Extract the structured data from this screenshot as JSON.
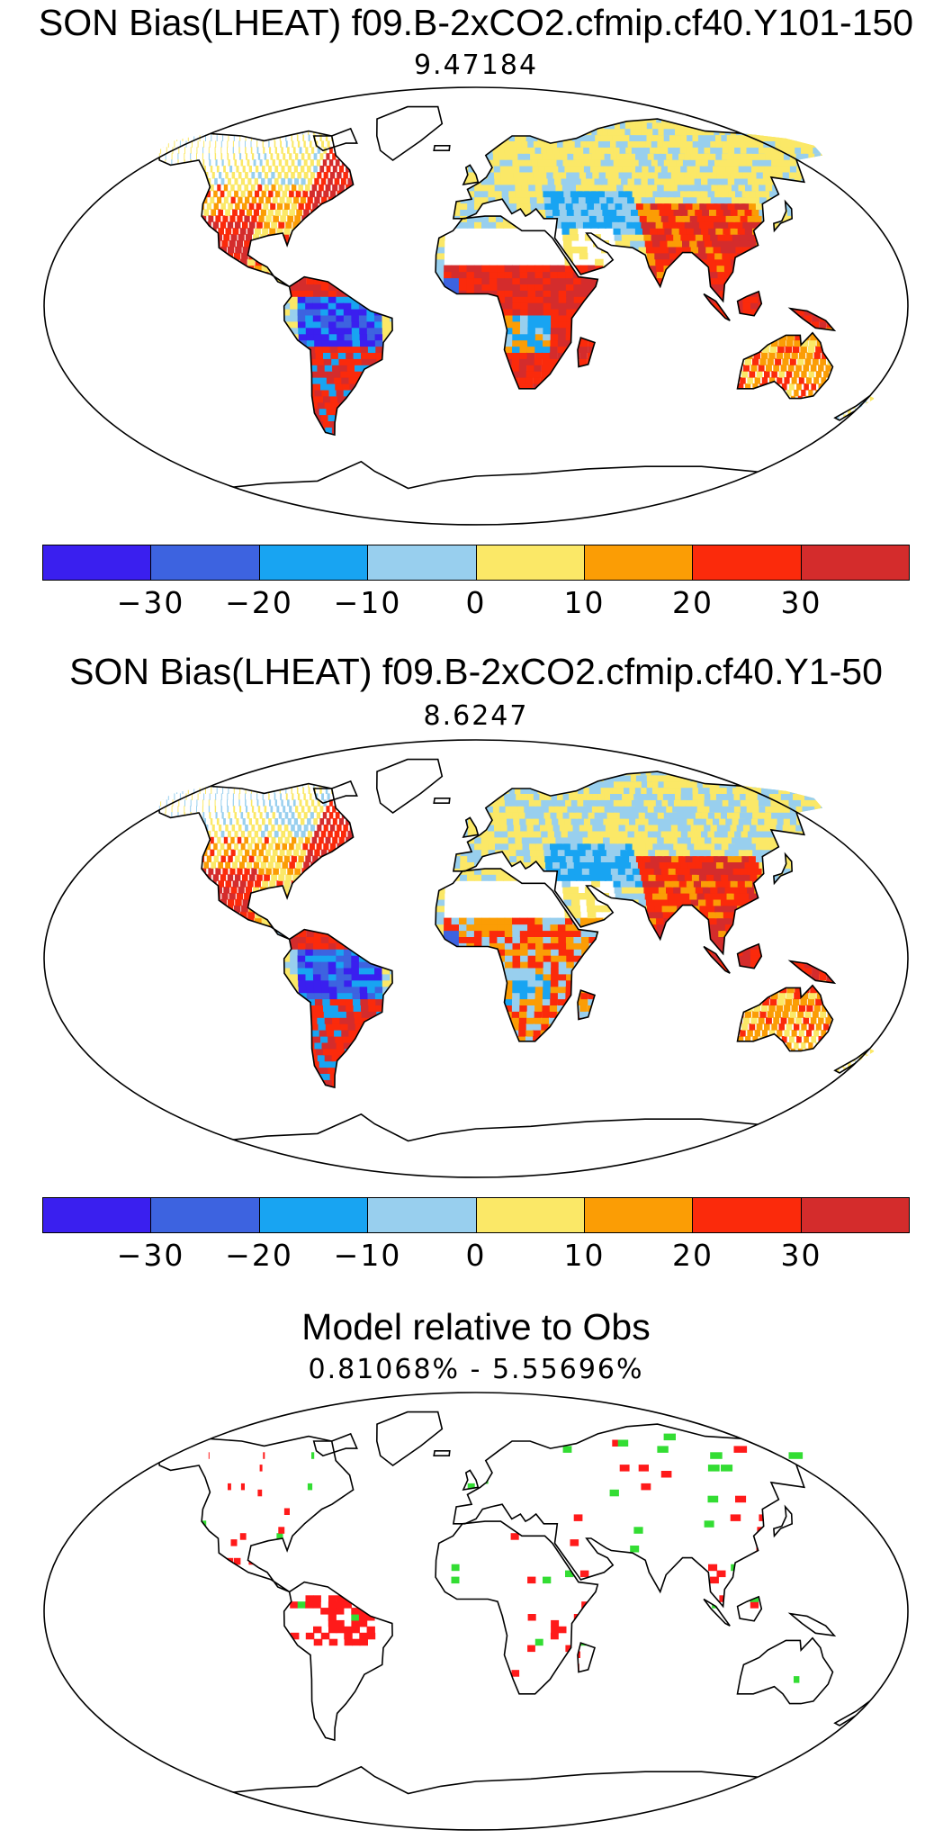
{
  "panels": [
    {
      "title": "SON Bias(LHEAT) f09.B-2xCO2.cfmip.cf40.Y101-150",
      "value": "9.47184"
    },
    {
      "title": "SON Bias(LHEAT) f09.B-2xCO2.cfmip.cf40.Y1-50",
      "value": "8.6247"
    },
    {
      "title": "Model relative to Obs",
      "value": "0.81068% - 5.55696%"
    }
  ],
  "colorbar": {
    "colors": [
      "#3a1fef",
      "#3d63e0",
      "#18a4f2",
      "#98cfee",
      "#fbe867",
      "#fb9d05",
      "#fb2a0b",
      "#d42c2c"
    ],
    "tick_labels": [
      "−30",
      "−20",
      "−10",
      "0",
      "10",
      "20",
      "30"
    ]
  },
  "relative_map_colors": {
    "worse": "#ff1a1a",
    "better": "#33dd33"
  },
  "chart_data": {
    "type": "heatmap",
    "maps": [
      {
        "title": "SON Bias(LHEAT) f09.B-2xCO2.cfmip.cf40.Y101-150",
        "subtitle": "9.47184",
        "levels": [
          -40,
          -30,
          -20,
          -10,
          0,
          10,
          20,
          30,
          40
        ]
      },
      {
        "title": "SON Bias(LHEAT) f09.B-2xCO2.cfmip.cf40.Y1-50",
        "subtitle": "8.6247",
        "levels": [
          -40,
          -30,
          -20,
          -10,
          0,
          10,
          20,
          30,
          40
        ]
      },
      {
        "title": "Model relative to Obs",
        "subtitle": "0.81068% - 5.55696%"
      }
    ]
  }
}
